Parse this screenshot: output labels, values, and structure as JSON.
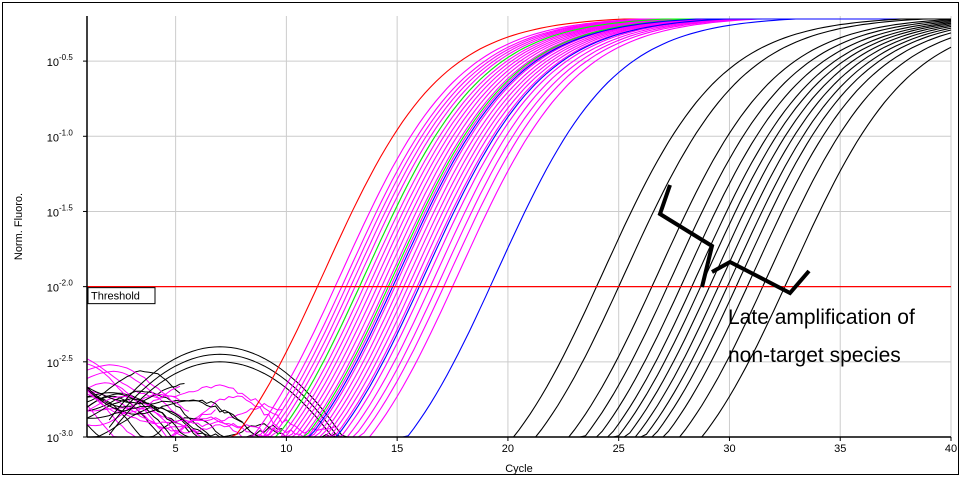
{
  "chart_data": {
    "type": "line",
    "title": "",
    "xlabel": "Cycle",
    "ylabel": "Norm. Fluoro.",
    "xlim": [
      1,
      40
    ],
    "ylim_log10": [
      -3.0,
      -0.2
    ],
    "y_scale": "log",
    "grid": true,
    "x_ticks": [
      5,
      10,
      15,
      20,
      25,
      30,
      35,
      40
    ],
    "y_ticks": [
      {
        "value": -0.5,
        "base": "10",
        "exp": "-0.5"
      },
      {
        "value": -1.0,
        "base": "10",
        "exp": "-1.0"
      },
      {
        "value": -1.5,
        "base": "10",
        "exp": "-1.5"
      },
      {
        "value": -2.0,
        "base": "10",
        "exp": "-2.0"
      },
      {
        "value": -2.5,
        "base": "10",
        "exp": "-2.5"
      },
      {
        "value": -3.0,
        "base": "10",
        "exp": "-3.0"
      }
    ],
    "threshold": {
      "label": "Threshold",
      "value_log10": -2.0,
      "color": "#ff0000"
    },
    "annotation": {
      "lines": [
        "Late amplification of",
        "non-target species"
      ]
    },
    "series": [
      {
        "group": "red",
        "color": "#ff0000",
        "ct": [
          11.4
        ]
      },
      {
        "group": "magenta",
        "color": "#ff00ff",
        "ct": [
          12.2,
          12.5,
          12.7,
          12.9,
          13.1,
          13.3,
          13.5,
          13.7,
          13.9,
          14.1,
          14.3,
          14.5,
          14.7,
          14.9,
          15.1,
          15.3,
          15.5,
          15.7,
          15.9,
          16.2,
          16.5,
          16.8,
          17.1,
          17.5
        ]
      },
      {
        "group": "green",
        "color": "#00ff00",
        "ct": [
          13.3,
          14.6
        ]
      },
      {
        "group": "blue",
        "color": "#0000ff",
        "ct": [
          14.8,
          16.0,
          19.2
        ]
      },
      {
        "group": "black",
        "color": "#000000",
        "ct": [
          24.0,
          25.0,
          26.5,
          27.2,
          27.8,
          28.3,
          28.7,
          29.1,
          29.5,
          29.9,
          30.3,
          30.8,
          31.5,
          32.5
        ]
      }
    ],
    "colors": {
      "red": "#ff0000",
      "magenta": "#ff00ff",
      "green": "#00ff00",
      "blue": "#0000ff",
      "black": "#000000",
      "grid": "#cccccc"
    }
  }
}
